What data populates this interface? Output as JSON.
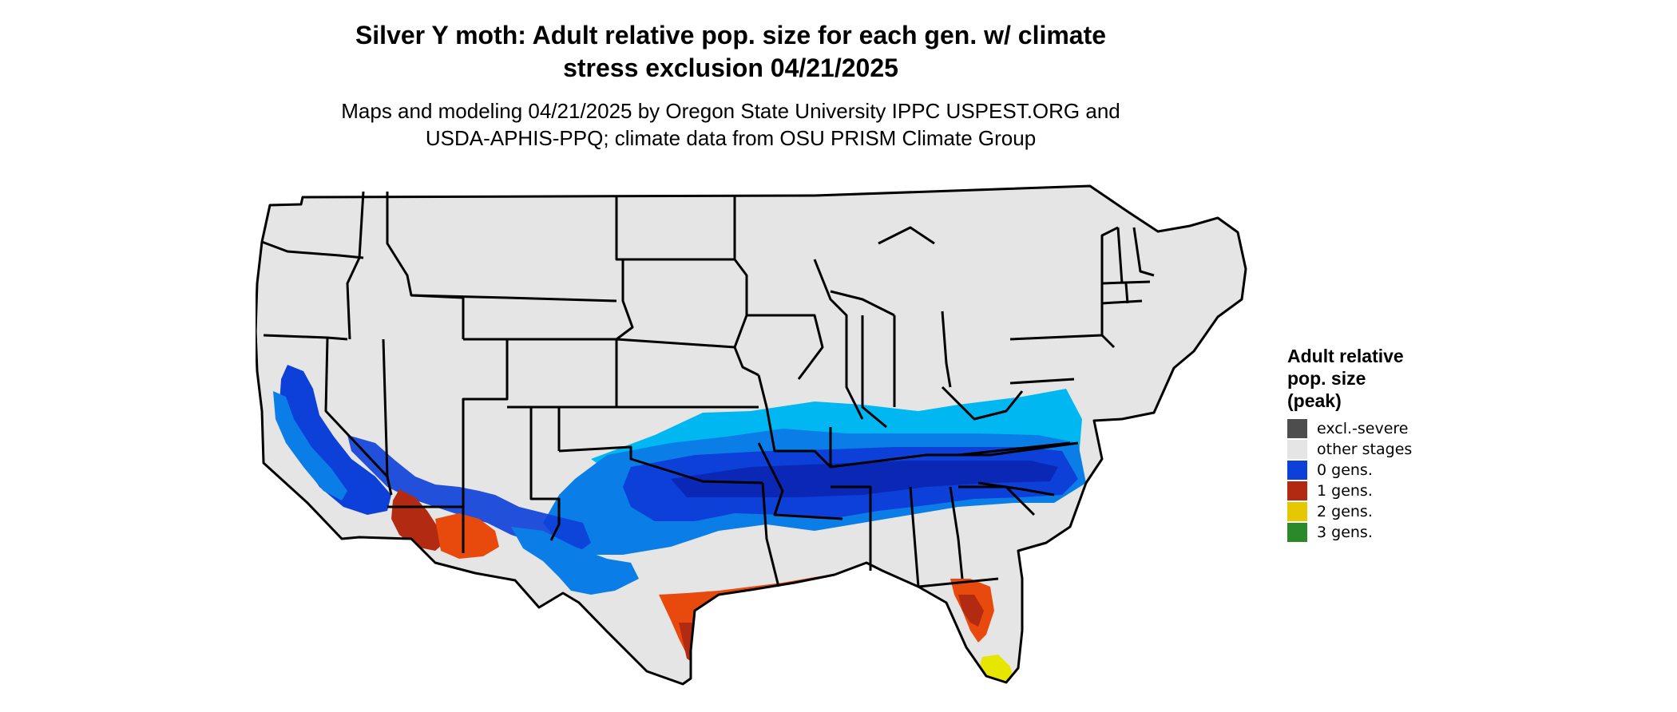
{
  "header": {
    "title_line1": "Silver Y moth: Adult relative pop. size for each gen. w/ climate",
    "title_line2": "stress exclusion 04/21/2025",
    "subtitle_line1": "Maps and modeling 04/21/2025 by Oregon State University IPPC USPEST.ORG and",
    "subtitle_line2": "USDA-APHIS-PPQ; climate data from OSU PRISM Climate Group"
  },
  "legend": {
    "title_line1": "Adult relative",
    "title_line2": "pop. size",
    "title_line3": "(peak)",
    "items": [
      {
        "label": "excl.-severe",
        "color": "#4d4d4d"
      },
      {
        "label": "other stages",
        "color": "#e5e5e5"
      },
      {
        "label": "0 gens.",
        "color": "#0d3fd9"
      },
      {
        "label": "1 gens.",
        "color": "#b22a12"
      },
      {
        "label": "2 gens.",
        "color": "#e6c800"
      },
      {
        "label": "3 gens.",
        "color": "#2a8a2a"
      }
    ]
  },
  "map": {
    "region": "contiguous-united-states",
    "colors": {
      "land": "#e5e5e5",
      "border": "#000000",
      "gen0_light": "#00b7f2",
      "gen0_mid": "#0a7ee6",
      "gen0_dark": "#0d3fd9",
      "gen0_deep": "#0a22a8",
      "gen1_red": "#b22a12",
      "gen1_orange": "#e84a0e",
      "gen2_yellow": "#e6e600"
    }
  }
}
